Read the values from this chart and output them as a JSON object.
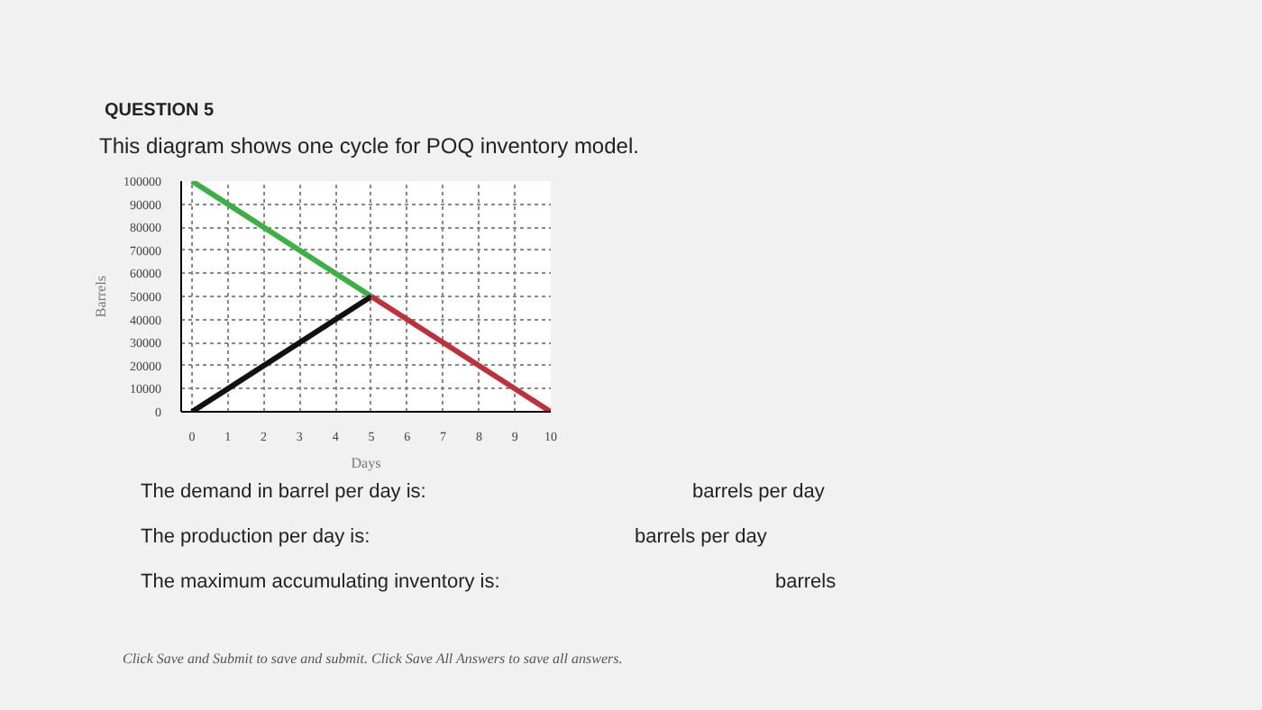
{
  "chart_data": {
    "type": "line",
    "title": "QUESTION 5",
    "subtitle": "This diagram shows one cycle for POQ inventory model.",
    "xlabel": "Days",
    "ylabel": "Barrels",
    "series": [
      {
        "color": "#3cb043",
        "x": [
          0,
          5
        ],
        "values": [
          100000,
          50000
        ]
      },
      {
        "color": "#111111",
        "x": [
          0,
          5
        ],
        "values": [
          0,
          50000
        ]
      },
      {
        "color": "#c0303a",
        "x": [
          5,
          10
        ],
        "values": [
          50000,
          0
        ]
      }
    ],
    "xlim": [
      -0.3,
      10
    ],
    "ylim": [
      0,
      100000
    ],
    "xticks": [
      0,
      1,
      2,
      3,
      4,
      5,
      6,
      7,
      8,
      9,
      10
    ],
    "yticks": [
      0,
      10000,
      20000,
      30000,
      40000,
      50000,
      60000,
      70000,
      80000,
      90000,
      100000
    ],
    "grid": true,
    "line_style": "solid",
    "annotations": [
      "The demand in barrel per day is:",
      "barrels per day",
      "The production per day is:",
      "barrels per day",
      "The maximum accumulating inventory is:",
      "barrels",
      "Click Save and Submit to save and submit. Click Save All Answers to save all answers."
    ]
  }
}
